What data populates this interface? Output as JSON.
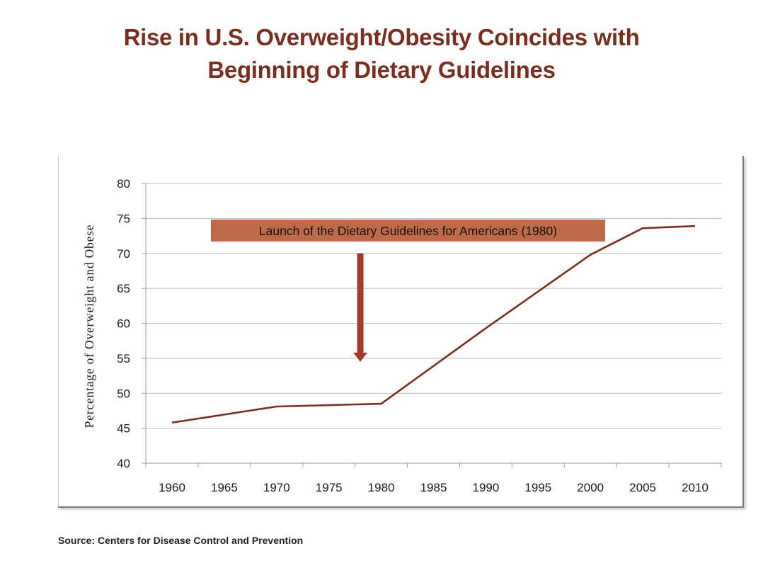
{
  "title_lines": [
    "Rise in U.S. Overweight/Obesity Coincides with",
    "Beginning of Dietary Guidelines"
  ],
  "source": "Source: Centers for Disease Control and Prevention",
  "colors": {
    "title": "#7a2e21",
    "line": "#7a2e21",
    "annotation_box": "#c0694a",
    "arrow": "#a23b2a",
    "grid": "#bfbfbf",
    "axis_text": "#1a1a1a"
  },
  "chart_data": {
    "type": "line",
    "title": "Rise in U.S. Overweight/Obesity Coincides with Beginning of Dietary Guidelines",
    "xlabel": "",
    "ylabel": "Percentage of Overweight and Obese",
    "xlim": [
      1960,
      2010
    ],
    "ylim": [
      40,
      80
    ],
    "x_ticks": [
      1960,
      1965,
      1970,
      1975,
      1980,
      1985,
      1990,
      1995,
      2000,
      2005,
      2010
    ],
    "y_ticks": [
      40,
      45,
      50,
      55,
      60,
      65,
      70,
      75,
      80
    ],
    "grid": "horizontal",
    "series": [
      {
        "x": [
          1960,
          1970,
          1980,
          1990,
          2000,
          2005,
          2010
        ],
        "y": [
          45.8,
          48.1,
          48.5,
          59.3,
          69.8,
          73.6,
          73.9
        ]
      }
    ],
    "annotation": {
      "text": "Launch of the Dietary Guidelines for Americans (1980)",
      "arrow_x": 1978,
      "arrow_y_start": 70,
      "arrow_y_end": 54.5
    }
  }
}
